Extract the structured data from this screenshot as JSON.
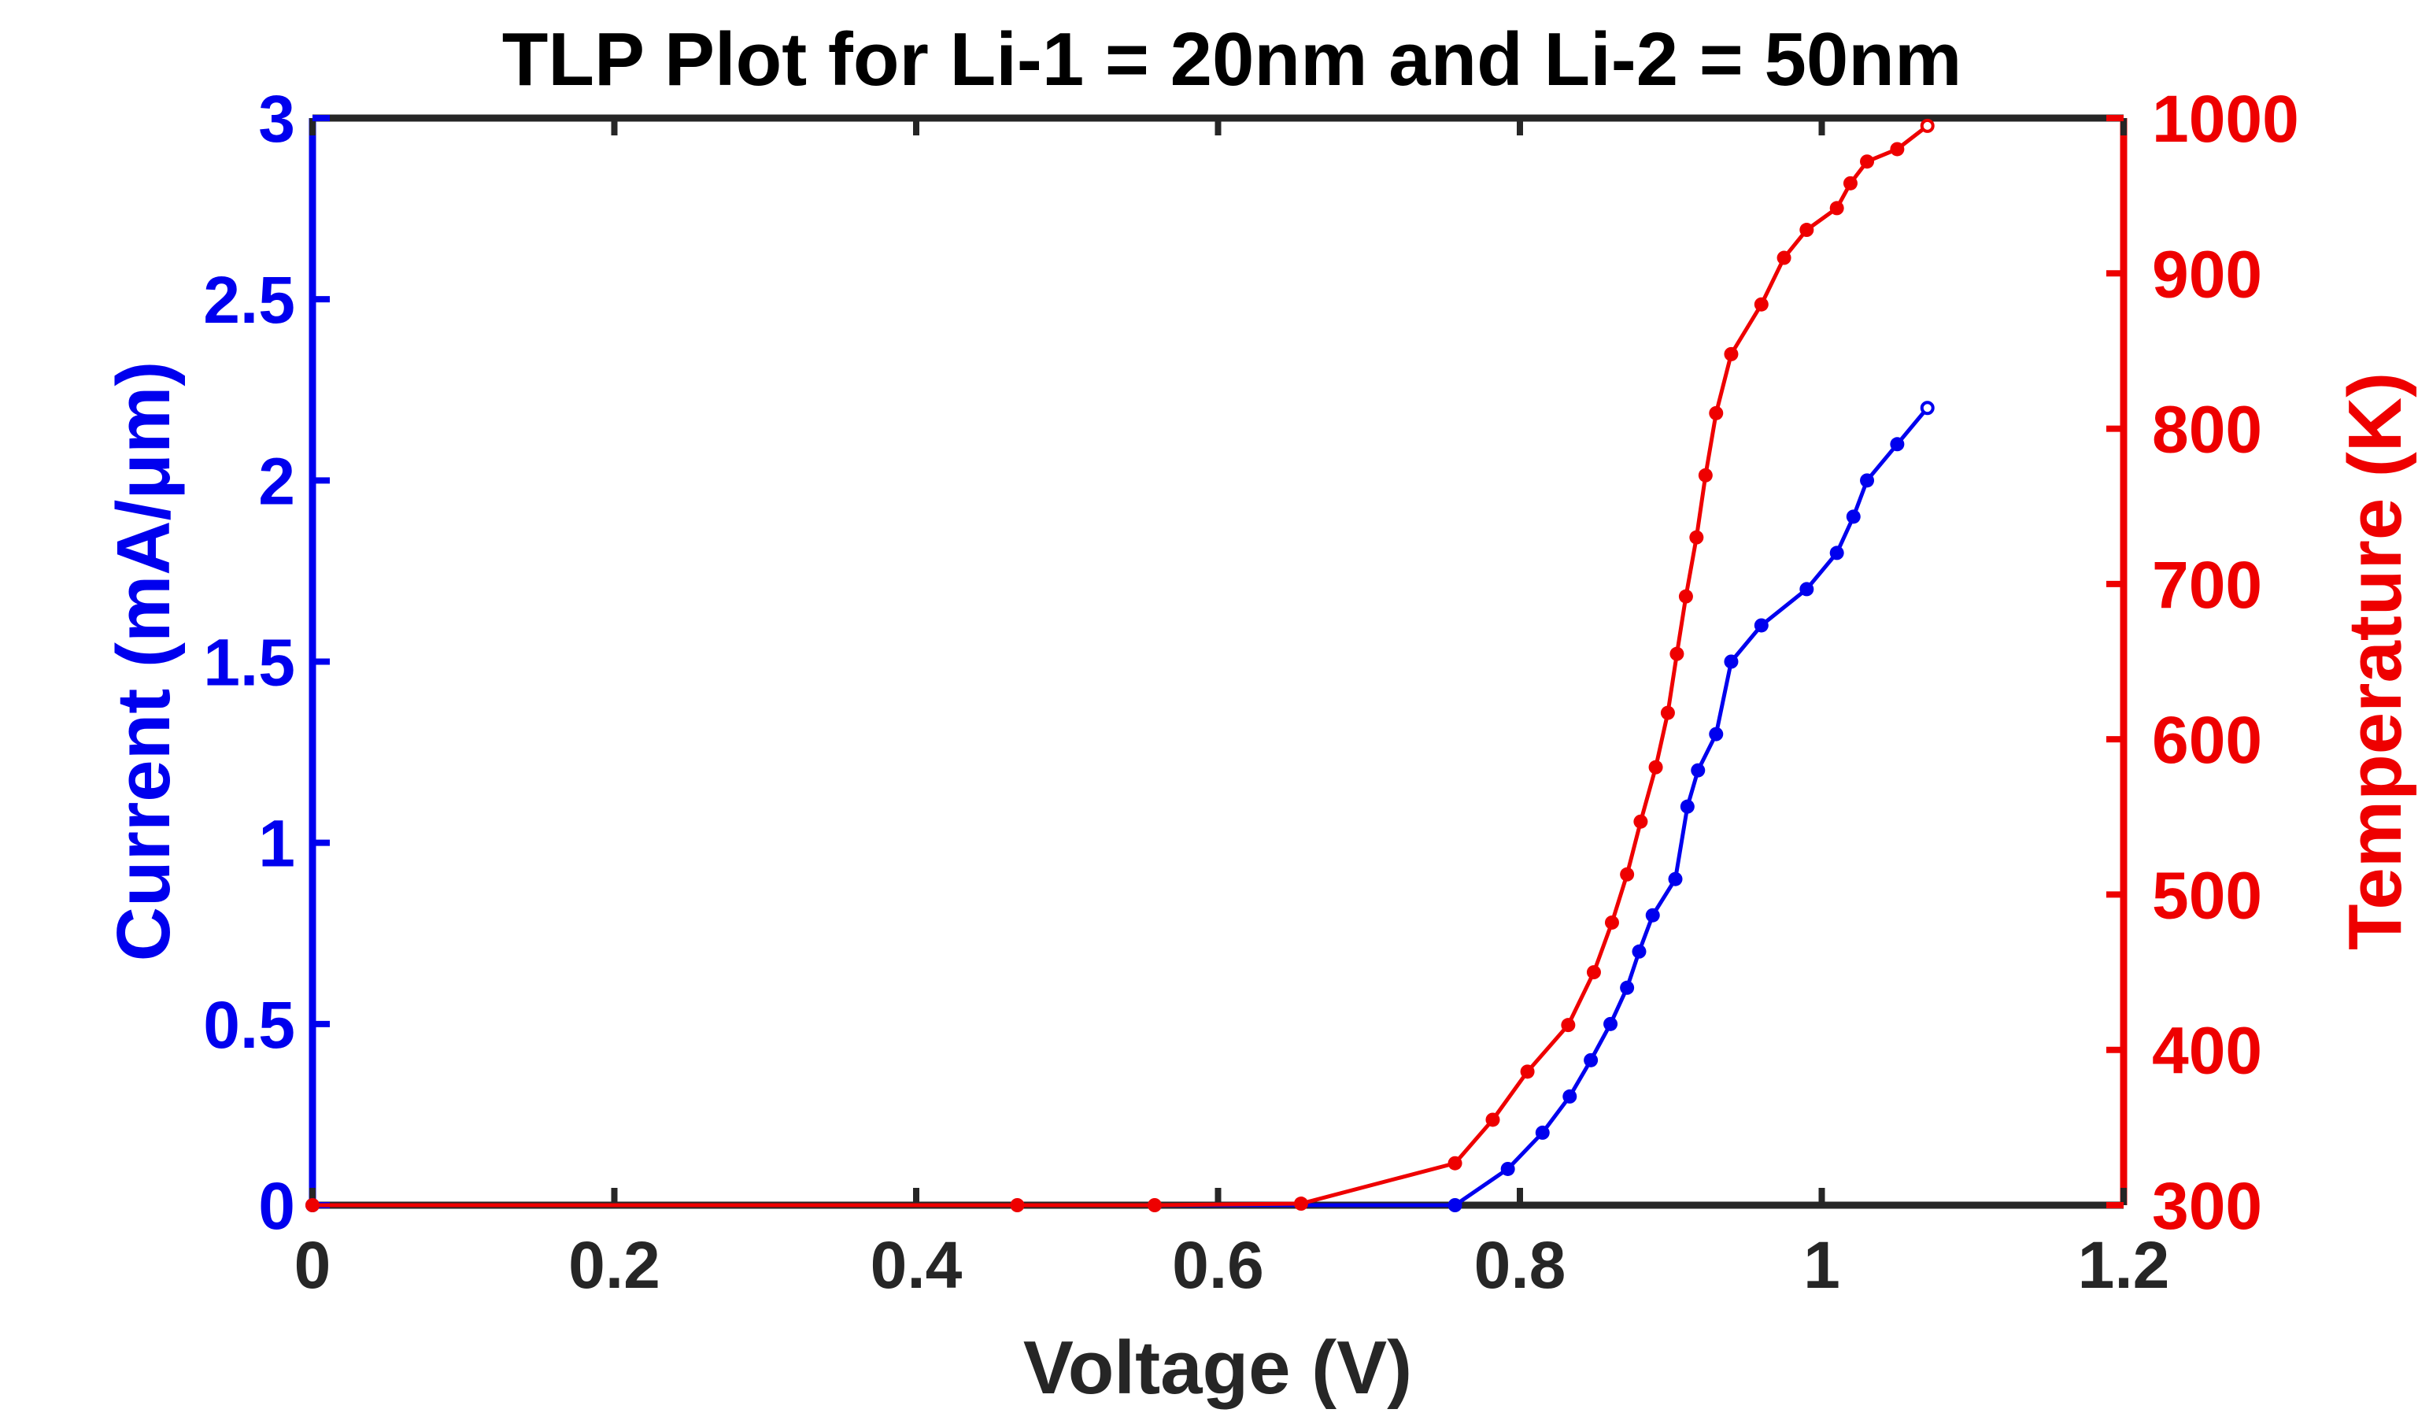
{
  "chart_data": {
    "type": "line",
    "title": "TLP Plot for Li-1 = 20nm and Li-2 = 50nm",
    "xlabel": "Voltage (V)",
    "ylabel_left": "Current (mA/μm)",
    "ylabel_right": "Temperature (K)",
    "xlim": [
      0,
      1.2
    ],
    "ylim_left": [
      0,
      3
    ],
    "ylim_right": [
      300,
      1000
    ],
    "xticks": [
      "0",
      "0.2",
      "0.4",
      "0.6",
      "0.8",
      "1",
      "1.2"
    ],
    "yticks_left": [
      "0",
      "0.5",
      "1",
      "1.5",
      "2",
      "2.5",
      "3"
    ],
    "yticks_right": [
      "300",
      "400",
      "500",
      "600",
      "700",
      "800",
      "900",
      "1000"
    ],
    "grid": false,
    "colors": {
      "current": "#0000ee",
      "temperature": "#ee0000",
      "axis": "#262626"
    },
    "series": [
      {
        "axis": "left",
        "color": "#0000ee",
        "x": [
          0,
          0.757,
          0.792,
          0.815,
          0.833,
          0.847,
          0.86,
          0.871,
          0.879,
          0.888,
          0.903,
          0.911,
          0.918,
          0.93,
          0.94,
          0.96,
          0.99,
          1.01,
          1.021,
          1.03,
          1.05,
          1.07
        ],
        "y": [
          0,
          0,
          0.1,
          0.2,
          0.3,
          0.4,
          0.5,
          0.6,
          0.7,
          0.8,
          0.9,
          1.1,
          1.2,
          1.3,
          1.5,
          1.6,
          1.7,
          1.8,
          1.9,
          2.0,
          2.1,
          2.2
        ]
      },
      {
        "axis": "right",
        "color": "#ee0000",
        "x": [
          0,
          0.467,
          0.558,
          0.655,
          0.757,
          0.782,
          0.805,
          0.832,
          0.849,
          0.861,
          0.871,
          0.88,
          0.89,
          0.898,
          0.904,
          0.91,
          0.917,
          0.923,
          0.93,
          0.94,
          0.96,
          0.975,
          0.99,
          1.01,
          1.019,
          1.03,
          1.05,
          1.07
        ],
        "y": [
          300,
          300,
          300,
          301,
          327,
          355,
          386,
          416,
          450,
          482,
          513,
          547,
          582,
          617,
          655,
          692,
          730,
          770,
          810,
          848,
          880,
          910,
          928,
          942,
          958,
          972,
          980,
          995
        ]
      }
    ]
  }
}
